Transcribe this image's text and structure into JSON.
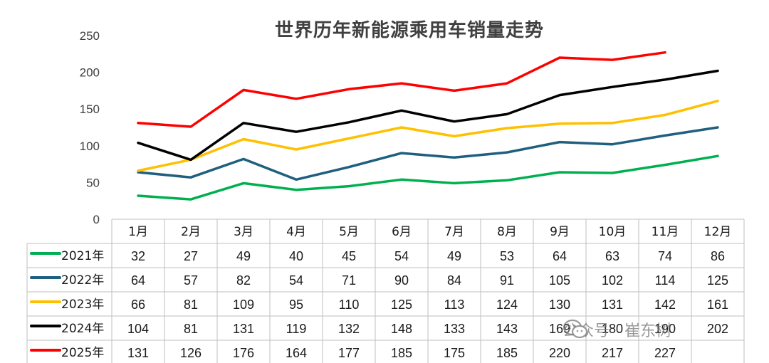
{
  "title": "世界历年新能源乘用车销量走势",
  "watermark": "公众号 · 崔东树",
  "chart_data": {
    "type": "line",
    "title": "世界历年新能源乘用车销量走势",
    "categories": [
      "1月",
      "2月",
      "3月",
      "4月",
      "5月",
      "6月",
      "7月",
      "8月",
      "9月",
      "10月",
      "11月",
      "12月"
    ],
    "ylim": [
      0,
      250
    ],
    "yticks": [
      0,
      50,
      100,
      150,
      200,
      250
    ],
    "grid": false,
    "legend": "table-left",
    "series": [
      {
        "name": "2021年",
        "color": "#00b050",
        "values": [
          32,
          27,
          49,
          40,
          45,
          54,
          49,
          53,
          64,
          63,
          74,
          86
        ]
      },
      {
        "name": "2022年",
        "color": "#1f5f7f",
        "values": [
          64,
          57,
          82,
          54,
          71,
          90,
          84,
          91,
          105,
          102,
          114,
          125
        ]
      },
      {
        "name": "2023年",
        "color": "#ffc000",
        "values": [
          66,
          81,
          109,
          95,
          110,
          125,
          113,
          124,
          130,
          131,
          142,
          161
        ]
      },
      {
        "name": "2024年",
        "color": "#000000",
        "values": [
          104,
          81,
          131,
          119,
          132,
          148,
          133,
          143,
          169,
          180,
          190,
          202
        ]
      },
      {
        "name": "2025年",
        "color": "#ff0000",
        "values": [
          131,
          126,
          176,
          164,
          177,
          185,
          175,
          185,
          220,
          217,
          227,
          null
        ]
      }
    ]
  }
}
